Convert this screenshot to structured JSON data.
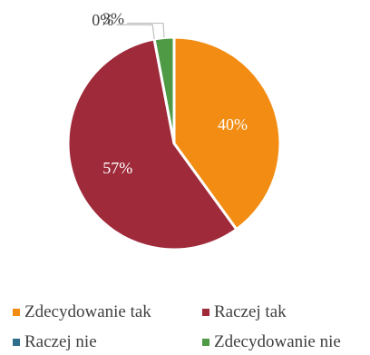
{
  "chart_data": {
    "type": "pie",
    "categories": [
      "Zdecydowanie tak",
      "Raczej tak",
      "Raczej nie",
      "Zdecydowanie nie"
    ],
    "values": [
      40,
      57,
      0,
      3
    ],
    "labels": [
      "40%",
      "57%",
      "0%",
      "3%"
    ],
    "colors": [
      "#F28C13",
      "#9E2A3A",
      "#2E6E8A",
      "#4E9A45"
    ],
    "legend_position": "bottom",
    "start_angle_deg": 0,
    "direction": "clockwise"
  }
}
